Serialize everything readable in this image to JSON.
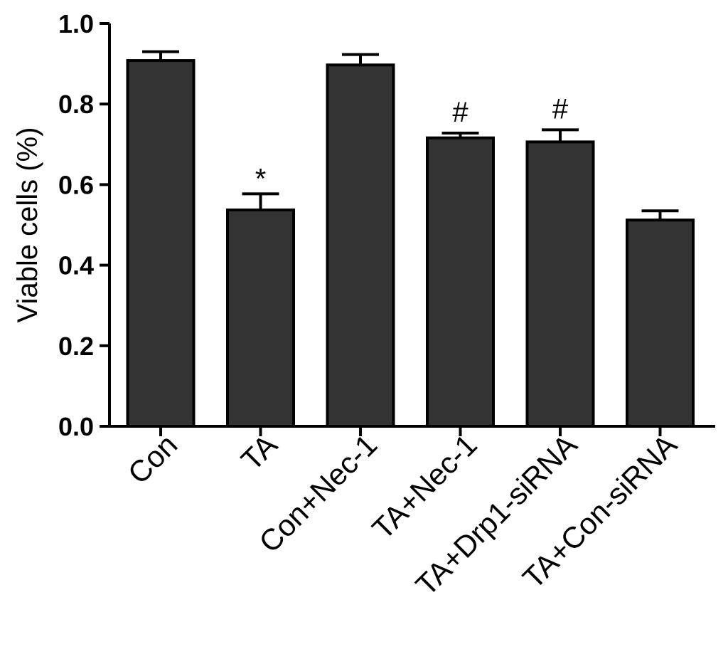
{
  "chart_data": {
    "type": "bar",
    "ylabel": "Viable cells (%)",
    "xlabel": "",
    "ylim": [
      0,
      1.0
    ],
    "yticks": [
      "0.0",
      "0.2",
      "0.4",
      "0.6",
      "0.8",
      "1.0"
    ],
    "categories": [
      "Con",
      "TA",
      "Con+Nec-1",
      "TA+Nec-1",
      "TA+Drp1-siRNA",
      "TA+Con-siRNA"
    ],
    "values": [
      0.908,
      0.537,
      0.897,
      0.716,
      0.706,
      0.512
    ],
    "errors": [
      0.022,
      0.04,
      0.026,
      0.012,
      0.03,
      0.023
    ],
    "annotations": [
      "",
      "*",
      "",
      "#",
      "#",
      ""
    ],
    "bar_color": "#333333",
    "grid": false,
    "legend": "none"
  }
}
